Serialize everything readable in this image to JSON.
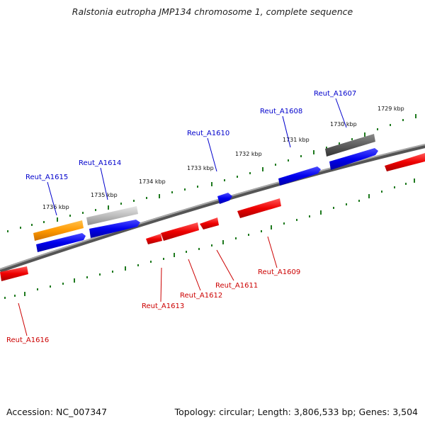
{
  "title": "Ralstonia eutropha JMP134 chromosome 1, complete sequence",
  "footer": {
    "accession": "Accession: NC_007347",
    "topology": "Topology: circular; Length: 3,806,533 bp; Genes: 3,504"
  },
  "colors": {
    "backbone": "#777777",
    "tick_marks": "#1f7a1f",
    "forward_gene": "#0000ee",
    "reverse_gene": "#ee0000",
    "label_forward": "#0000cc",
    "label_reverse": "#cc0000",
    "feature_orange": "#ff9900",
    "feature_light_gray": "#bdbdbd",
    "feature_dark_gray": "#5e5e5e"
  },
  "scale_labels": [
    "1729 kbp",
    "1730 kbp",
    "1731 kbp",
    "1732 kbp",
    "1733 kbp",
    "1734 kbp",
    "1735 kbp",
    "1736 kbp"
  ],
  "gene_labels": {
    "forward": [
      "Reut_A1607",
      "Reut_A1608",
      "Reut_A1610",
      "Reut_A1614",
      "Reut_A1615"
    ],
    "reverse": [
      "Reut_A1609",
      "Reut_A1611",
      "Reut_A1612",
      "Reut_A1613",
      "Reut_A1616"
    ]
  }
}
